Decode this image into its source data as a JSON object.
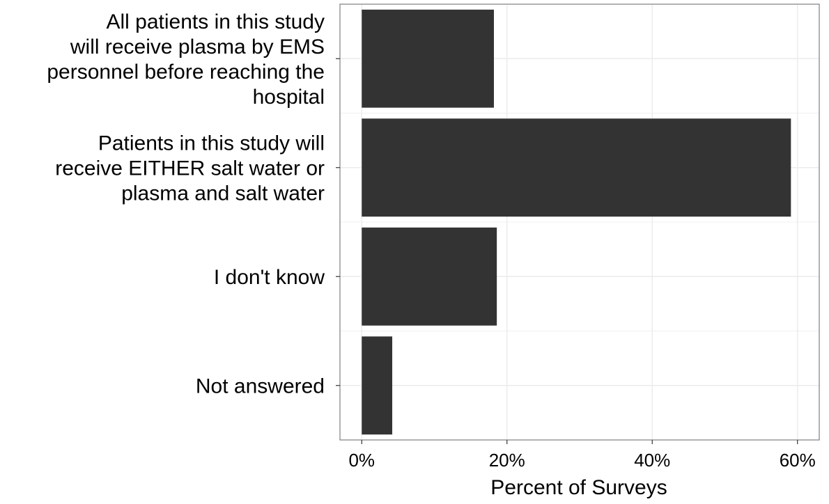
{
  "chart_data": {
    "type": "bar",
    "orientation": "horizontal",
    "title": "",
    "xlabel": "Percent of Surveys",
    "ylabel": "",
    "categories": [
      [
        "All patients in this study",
        "will receive plasma by EMS",
        "personnel before reaching the",
        "hospital"
      ],
      [
        "Patients in this study will",
        "receive EITHER salt water or",
        "plasma and salt water"
      ],
      [
        "I don't know"
      ],
      [
        "Not answered"
      ]
    ],
    "values": [
      18.2,
      59.1,
      18.6,
      4.2
    ],
    "xlim": [
      -3,
      63
    ],
    "x_ticks": [
      0,
      20,
      40,
      60
    ],
    "x_tick_labels": [
      "0%",
      "20%",
      "40%",
      "60%"
    ],
    "grid": true,
    "legend": "none",
    "bar_color": "#333333",
    "grid_color": "#ebebeb",
    "panel_border_color": "#7f7f7f"
  }
}
